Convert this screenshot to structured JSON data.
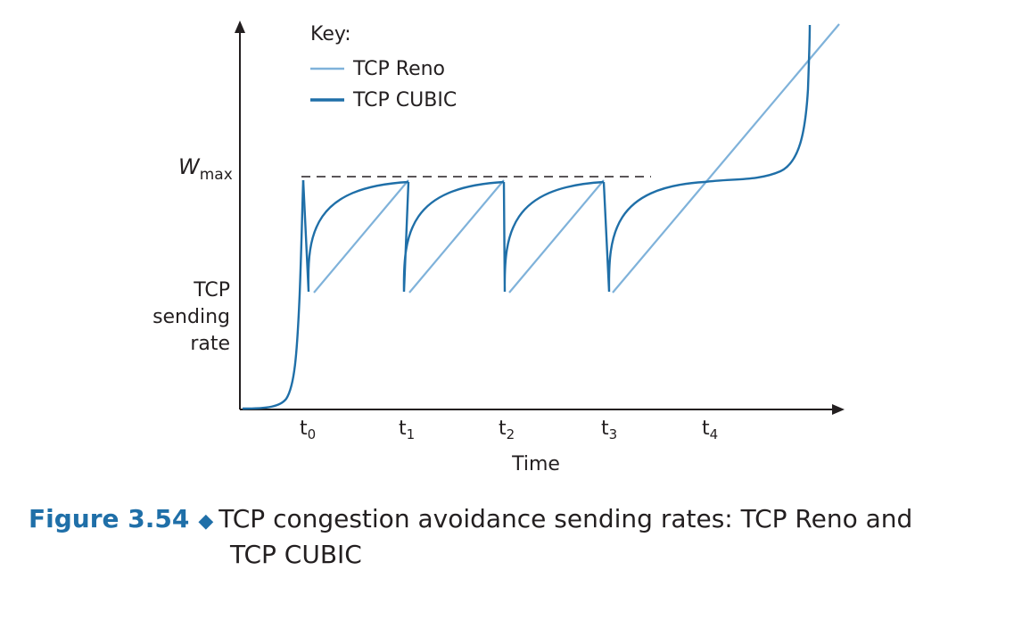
{
  "figure": {
    "label": "Figure 3.54",
    "caption_line1": "TCP congestion avoidance sending rates: TCP Reno and",
    "caption_line2": "TCP CUBIC"
  },
  "legend": {
    "title": "Key:",
    "items": [
      {
        "name": "TCP Reno",
        "color": "#7fb2da"
      },
      {
        "name": "TCP CUBIC",
        "color": "#1f6fa8"
      }
    ]
  },
  "axes": {
    "y_label_lines": [
      "TCP",
      "sending",
      "rate"
    ],
    "x_label": "Time",
    "wmax_base": "W",
    "wmax_sub": "max",
    "ticks": [
      {
        "base": "t",
        "sub": "0"
      },
      {
        "base": "t",
        "sub": "1"
      },
      {
        "base": "t",
        "sub": "2"
      },
      {
        "base": "t",
        "sub": "3"
      },
      {
        "base": "t",
        "sub": "4"
      }
    ]
  },
  "colors": {
    "axis": "#231f20",
    "reno": "#7fb2da",
    "cubic": "#1f6fa8",
    "text": "#231f20"
  }
}
